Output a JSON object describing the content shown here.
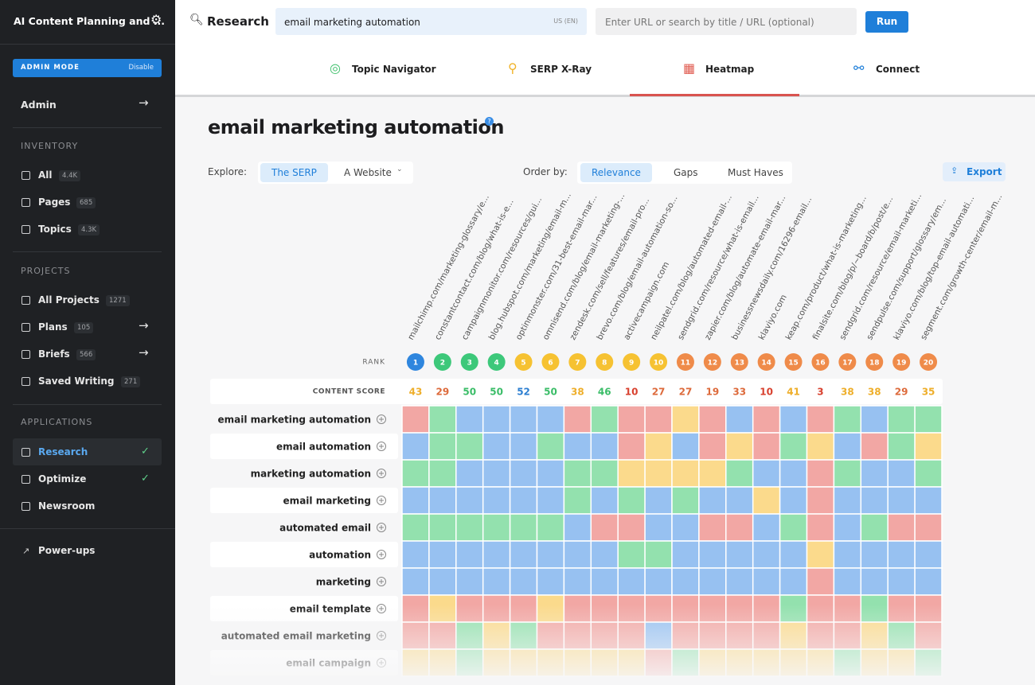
{
  "sidebar": {
    "app_title": "AI Content Planning and ...",
    "admin_mode": "ADMIN MODE",
    "disable": "Disable",
    "admin": "Admin",
    "inventory": {
      "heading": "INVENTORY",
      "items": [
        {
          "label": "All",
          "count": "4.4K"
        },
        {
          "label": "Pages",
          "count": "685"
        },
        {
          "label": "Topics",
          "count": "4.3K"
        }
      ]
    },
    "projects": {
      "heading": "PROJECTS",
      "items": [
        {
          "label": "All Projects",
          "count": "1271"
        },
        {
          "label": "Plans",
          "count": "105"
        },
        {
          "label": "Briefs",
          "count": "566"
        },
        {
          "label": "Saved Writing",
          "count": "271"
        }
      ]
    },
    "applications": {
      "heading": "APPLICATIONS",
      "items": [
        "Research",
        "Optimize",
        "Newsroom"
      ]
    },
    "power_ups": "Power-ups"
  },
  "topbar": {
    "section": "Research",
    "query": "email marketing automation",
    "locale": "US (EN)",
    "url_placeholder": "Enter URL or search by title / URL (optional)",
    "run": "Run"
  },
  "tabs": [
    "Topic Navigator",
    "SERP X-Ray",
    "Heatmap",
    "Connect"
  ],
  "page": {
    "title": "email marketing automation",
    "explore_label": "Explore:",
    "explore_options": [
      "The SERP",
      "A Website"
    ],
    "order_label": "Order by:",
    "order_options": [
      "Relevance",
      "Gaps",
      "Must Haves"
    ],
    "export": "Export"
  },
  "heatmap": {
    "rank_label": "RANK",
    "score_label": "CONTENT SCORE",
    "columns": [
      {
        "url": "mailchimp.com/marketing-glossary/e...",
        "rank": "1",
        "score": "43",
        "rank_color": "b",
        "score_color": "y"
      },
      {
        "url": "constantcontact.com/blog/what-is-e...",
        "rank": "2",
        "score": "29",
        "rank_color": "g",
        "score_color": "o"
      },
      {
        "url": "campaignmonitor.com/resources/gui...",
        "rank": "3",
        "score": "50",
        "rank_color": "g",
        "score_color": "g"
      },
      {
        "url": "blog.hubspot.com/marketing/email-m...",
        "rank": "4",
        "score": "50",
        "rank_color": "g",
        "score_color": "g"
      },
      {
        "url": "optinmonster.com/31-best-email-mar...",
        "rank": "5",
        "score": "52",
        "rank_color": "y",
        "score_color": "b"
      },
      {
        "url": "omnisend.com/blog/email-marketing-...",
        "rank": "6",
        "score": "50",
        "rank_color": "y",
        "score_color": "g"
      },
      {
        "url": "zendesk.com/sell/features/email-pro...",
        "rank": "7",
        "score": "38",
        "rank_color": "y",
        "score_color": "y"
      },
      {
        "url": "brevo.com/blog/email-automation-so...",
        "rank": "8",
        "score": "46",
        "rank_color": "y",
        "score_color": "g"
      },
      {
        "url": "activecampaign.com",
        "rank": "9",
        "score": "10",
        "rank_color": "y",
        "score_color": "r"
      },
      {
        "url": "neilpatel.com/blog/automated-email-...",
        "rank": "10",
        "score": "27",
        "rank_color": "y",
        "score_color": "o"
      },
      {
        "url": "sendgrid.com/resource/what-is-email...",
        "rank": "11",
        "score": "27",
        "rank_color": "o",
        "score_color": "o"
      },
      {
        "url": "zapier.com/blog/automate-email-mar...",
        "rank": "12",
        "score": "19",
        "rank_color": "o",
        "score_color": "o"
      },
      {
        "url": "businessnewsdaily.com/16296-email...",
        "rank": "13",
        "score": "33",
        "rank_color": "o",
        "score_color": "o"
      },
      {
        "url": "klaviyo.com",
        "rank": "14",
        "score": "10",
        "rank_color": "o",
        "score_color": "r"
      },
      {
        "url": "keap.com/product/what-is-marketing...",
        "rank": "15",
        "score": "41",
        "rank_color": "o",
        "score_color": "y"
      },
      {
        "url": "finalsite.com/blog/p/~board/b/post/e...",
        "rank": "16",
        "score": "3",
        "rank_color": "o",
        "score_color": "r"
      },
      {
        "url": "sendgrid.com/resource/email-marketi...",
        "rank": "17",
        "score": "38",
        "rank_color": "o",
        "score_color": "y"
      },
      {
        "url": "sendpulse.com/support/glossary/em...",
        "rank": "18",
        "score": "38",
        "rank_color": "o",
        "score_color": "y"
      },
      {
        "url": "klaviyo.com/blog/top-email-automati...",
        "rank": "19",
        "score": "29",
        "rank_color": "o",
        "score_color": "o"
      },
      {
        "url": "segment.com/growth-center/email-m...",
        "rank": "20",
        "score": "35",
        "rank_color": "o",
        "score_color": "y"
      }
    ],
    "rows": [
      {
        "label": "email marketing automation",
        "cells": "rgbbbbrgrryrbrbrgbgg"
      },
      {
        "label": "email automation",
        "cells": "bggbbgbbrybryrgybrgy"
      },
      {
        "label": "marketing automation",
        "cells": "ggbbbbggyyyygbbrgbbg"
      },
      {
        "label": "email marketing",
        "cells": "bbbbbbgbgbgbbybrbbbb"
      },
      {
        "label": "automated email",
        "cells": "ggggggbrrbbrrbgrbgrr"
      },
      {
        "label": "automation",
        "cells": "bbbbbbbbggbbbbbybbbb"
      },
      {
        "label": "marketing",
        "cells": "bbbbbbbbbbbbbbbrbbbb"
      },
      {
        "label": "email template",
        "cells": "ryrrryrrrrrrrrgrrgrr"
      },
      {
        "label": "automated email marketing",
        "cells": "rrgygrrrrbrrrryrrygr"
      },
      {
        "label": "email campaign",
        "cells": "yygyyyyyyrgyyyyygyyg"
      }
    ]
  }
}
